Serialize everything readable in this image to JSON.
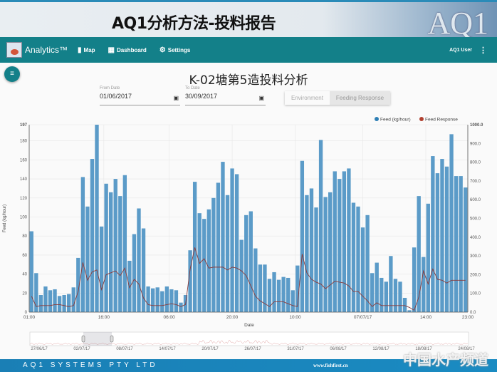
{
  "banner": {
    "title": "AQ1分析方法-投料报告",
    "logo_text": "AQ1"
  },
  "nav": {
    "brand": "Analytics™",
    "items": [
      {
        "label": "Map",
        "icon": "map-icon"
      },
      {
        "label": "Dashboard",
        "icon": "dashboard-icon"
      },
      {
        "label": "Settings",
        "icon": "gear-icon"
      }
    ],
    "user": "AQ1 User"
  },
  "page": {
    "title": "K-02塘第5造投料分析"
  },
  "filters": {
    "from_label": "From Date",
    "from_value": "01/06/2017",
    "to_label": "To Date",
    "to_value": "30/09/2017"
  },
  "toggle": {
    "options": [
      "Environment",
      "Feeding Response"
    ],
    "active": "Feeding Response"
  },
  "chart_data": {
    "type": "bar+line",
    "xlabel": "Date",
    "ylabel": "Feed (kg/hour)",
    "ylim": [
      0,
      197
    ],
    "y2lim": [
      0,
      1000
    ],
    "yticks": [
      "0",
      "20",
      "40",
      "60",
      "80",
      "100",
      "120",
      "140",
      "160",
      "180",
      "197"
    ],
    "y2ticks": [
      "0.0",
      "100.0",
      "200.0",
      "300.0",
      "400.0",
      "500.0",
      "600.0",
      "700.0",
      "800.0",
      "900.0",
      "1000.0"
    ],
    "xticks": [
      {
        "label": "01:00",
        "at": 0
      },
      {
        "label": "16:00",
        "at": 16
      },
      {
        "label": "06:00",
        "at": 30
      },
      {
        "label": "20:00",
        "at": 43.5
      },
      {
        "label": "10:00",
        "at": 57
      },
      {
        "label": "07/07/17",
        "at": 71.5
      },
      {
        "label": "14:00",
        "at": 85
      },
      {
        "label": "23:00",
        "at": 94
      }
    ],
    "grid": true,
    "legend": "top-right",
    "colors": {
      "feed": "#5b9bc8",
      "response": "#8a3a3a"
    },
    "series": [
      {
        "name": "Feed (kg/hour)",
        "axis": "left",
        "type": "bar",
        "values": [
          85,
          41,
          18,
          27,
          23,
          24,
          17,
          18,
          19,
          26,
          57,
          142,
          111,
          161,
          197,
          90,
          135,
          126,
          140,
          122,
          144,
          54,
          82,
          109,
          88,
          27,
          25,
          26,
          22,
          27,
          24,
          23,
          10,
          18,
          65,
          137,
          104,
          98,
          108,
          120,
          136,
          158,
          123,
          151,
          145,
          76,
          102,
          106,
          67,
          50,
          50,
          35,
          42,
          34,
          37,
          36,
          23,
          49,
          159,
          123,
          130,
          110,
          181,
          121,
          126,
          148,
          140,
          148,
          151,
          115,
          111,
          89,
          102,
          41,
          52,
          36,
          32,
          59,
          35,
          32,
          15,
          2,
          68,
          122,
          58,
          114,
          164,
          146,
          161,
          153,
          187,
          143,
          143,
          131
        ]
      },
      {
        "name": "Feed Response",
        "axis": "right",
        "type": "line",
        "values": [
          85,
          30,
          35,
          35,
          35,
          40,
          40,
          35,
          30,
          35,
          110,
          265,
          170,
          215,
          225,
          120,
          200,
          210,
          220,
          195,
          235,
          130,
          175,
          150,
          75,
          40,
          35,
          35,
          35,
          40,
          45,
          40,
          30,
          40,
          230,
          345,
          260,
          285,
          235,
          240,
          240,
          240,
          225,
          240,
          235,
          220,
          195,
          140,
          85,
          60,
          45,
          30,
          55,
          55,
          55,
          45,
          35,
          30,
          310,
          210,
          175,
          160,
          150,
          125,
          145,
          165,
          160,
          155,
          140,
          110,
          110,
          85,
          60,
          30,
          50,
          35,
          35,
          35,
          35,
          35,
          35,
          25,
          10,
          80,
          220,
          150,
          230,
          175,
          170,
          155,
          170,
          170,
          170,
          170
        ]
      }
    ],
    "navigator": {
      "labels": [
        "27/06/17",
        "02/07/17",
        "08/07/17",
        "14/07/17",
        "20/07/17",
        "26/07/17",
        "31/07/17",
        "06/08/17",
        "12/08/17",
        "18/08/17",
        "24/08/17"
      ]
    }
  },
  "footer": {
    "company": "AQ1 SYSTEMS PTY LTD"
  },
  "watermark": {
    "text": "中国水产频道",
    "url": "www.fishfirst.cn"
  }
}
